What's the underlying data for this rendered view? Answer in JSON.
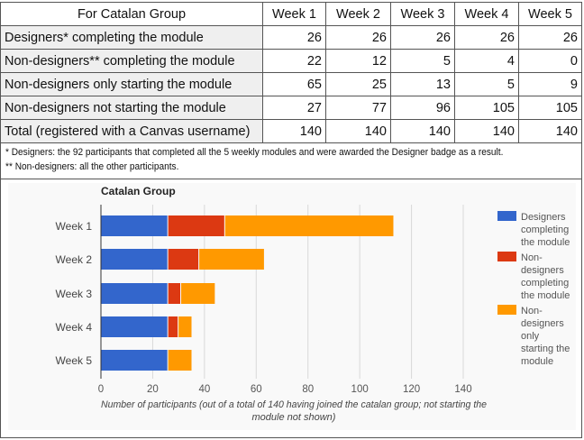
{
  "table": {
    "header": [
      "For Catalan Group",
      "Week 1",
      "Week 2",
      "Week 3",
      "Week 4",
      "Week 5"
    ],
    "rows": [
      {
        "label": "Designers* completing the module",
        "values": [
          "26",
          "26",
          "26",
          "26",
          "26"
        ]
      },
      {
        "label": "Non-designers** completing the module",
        "values": [
          "22",
          "12",
          "5",
          "4",
          "0"
        ]
      },
      {
        "label": "Non-designers only starting the module",
        "values": [
          "65",
          "25",
          "13",
          "5",
          "9"
        ]
      },
      {
        "label": "Non-designers not starting the module",
        "values": [
          "27",
          "77",
          "96",
          "105",
          "105"
        ]
      },
      {
        "label": "Total (registered with a Canvas username)",
        "values": [
          "140",
          "140",
          "140",
          "140",
          "140"
        ]
      }
    ]
  },
  "notes": {
    "note1": "* Designers: the 92 participants that completed all the 5 weekly modules and were awarded the Designer badge as a result.",
    "note2": "** Non-designers: all the other participants."
  },
  "chart_data": {
    "type": "bar",
    "orientation": "horizontal",
    "stacked": true,
    "title": "Catalan Group",
    "categories": [
      "Week 1",
      "Week 2",
      "Week 3",
      "Week 4",
      "Week 5"
    ],
    "series": [
      {
        "name": "Designers completing the module",
        "legend_lines": [
          "Designers",
          "completing",
          "the module"
        ],
        "color": "#3366cc",
        "values": [
          26,
          26,
          26,
          26,
          26
        ]
      },
      {
        "name": "Non-designers completing the module",
        "legend_lines": [
          "Non-",
          "designers",
          "completing",
          "the module"
        ],
        "color": "#dc3912",
        "values": [
          22,
          12,
          5,
          4,
          0
        ]
      },
      {
        "name": "Non-designers only starting the module",
        "legend_lines": [
          "Non-",
          "designers",
          "only",
          "starting the",
          "module"
        ],
        "color": "#ff9900",
        "values": [
          65,
          25,
          13,
          5,
          9
        ]
      }
    ],
    "xlim": [
      0,
      140
    ],
    "xticks": [
      0,
      20,
      40,
      60,
      80,
      100,
      120,
      140
    ],
    "xtick_labels": [
      "0",
      "20",
      "40",
      "60",
      "80",
      "100",
      "120",
      "140"
    ],
    "xlabel_lines": [
      "Number of participants (out of a total of 140 having joined the catalan group; not starting the",
      "module not shown)"
    ],
    "ylabel": "",
    "grid": true,
    "legend": "right"
  }
}
